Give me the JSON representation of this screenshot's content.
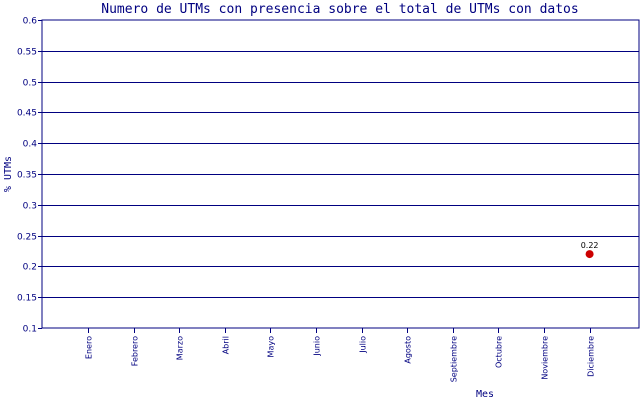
{
  "chart_data": {
    "type": "scatter",
    "title": "Numero de UTMs con presencia sobre el total de UTMs con datos",
    "xlabel": "Mes",
    "ylabel": "% UTMs",
    "categories": [
      "Enero",
      "Febrero",
      "Marzo",
      "Abril",
      "Mayo",
      "Junio",
      "Julio",
      "Agosto",
      "Septiembre",
      "Octubre",
      "Noviembre",
      "Diciembre"
    ],
    "y_ticks": [
      "0.1",
      "0.15",
      "0.2",
      "0.25",
      "0.3",
      "0.35",
      "0.4",
      "0.45",
      "0.5",
      "0.55",
      "0.6"
    ],
    "ylim": [
      0.1,
      0.6
    ],
    "grid": true,
    "points": [
      {
        "category": "Diciembre",
        "value": 0.22,
        "label": "0.22"
      }
    ],
    "colors": {
      "axis": "#000080",
      "grid": "#000080",
      "marker": "#cc0000",
      "text": "#000080"
    }
  }
}
